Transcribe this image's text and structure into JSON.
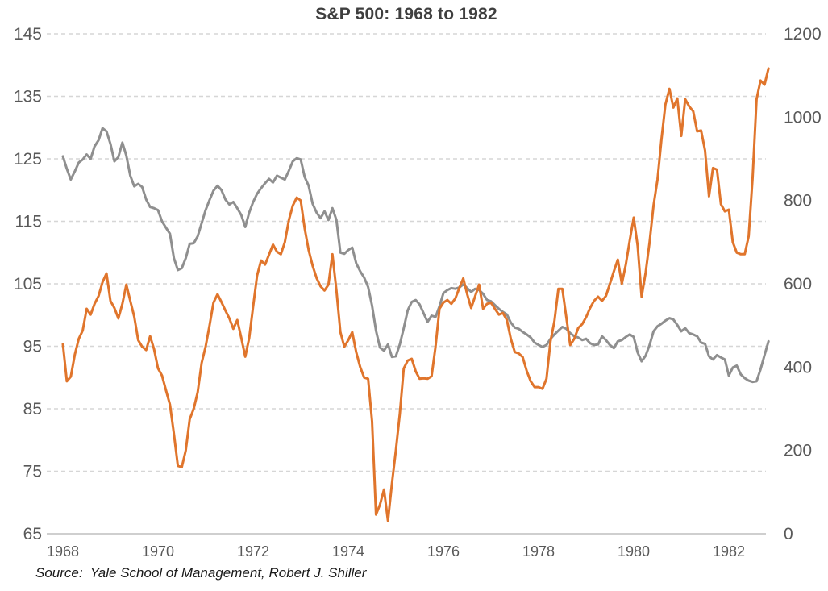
{
  "title": "S&P 500: 1968 to 1982",
  "source_note": "Source:  Yale School of Management, Robert J. Shiller",
  "colors": {
    "accent_orange": "#E0752C",
    "line_gray": "#8F8F8F",
    "gridline": "#D6D6D6",
    "axis_line": "#BFBFBF",
    "tick_label": "#595959",
    "title_text": "#3F3F3F",
    "source_text": "#1A1A1A",
    "background": "#FFFFFF"
  },
  "chart_data": {
    "type": "line",
    "title": "S&P 500: 1968 to 1982",
    "xlabel": "",
    "ylabel": "",
    "legend": "none",
    "grid": "horizontal dashed",
    "x_start": 1968,
    "x_step_years": 0.08333,
    "x_axis": {
      "ticks": [
        1968,
        1970,
        1972,
        1974,
        1976,
        1978,
        1980,
        1982
      ]
    },
    "left_axis": {
      "range": [
        65,
        145
      ],
      "ticks": [
        145,
        135,
        125,
        115,
        105,
        95,
        85,
        75,
        65
      ]
    },
    "right_axis": {
      "range": [
        0,
        1200
      ],
      "ticks": [
        1200,
        1000,
        800,
        600,
        400,
        200,
        0
      ]
    },
    "series": [
      {
        "name": "gray-line",
        "axis": "left",
        "color": "#8F8F8F",
        "values": [
          125.4,
          123.4,
          121.7,
          123.0,
          124.4,
          124.9,
          125.7,
          125.0,
          127.0,
          128.0,
          129.9,
          129.4,
          127.4,
          124.6,
          125.3,
          127.6,
          125.5,
          122.3,
          120.6,
          121.0,
          120.5,
          118.5,
          117.3,
          117.1,
          116.8,
          115.0,
          114.0,
          113.0,
          109.1,
          107.2,
          107.5,
          109.1,
          111.4,
          111.5,
          112.6,
          114.7,
          116.8,
          118.4,
          119.9,
          120.7,
          120.0,
          118.5,
          117.7,
          118.1,
          117.1,
          116.0,
          114.1,
          116.4,
          118.1,
          119.4,
          120.3,
          121.1,
          121.8,
          121.2,
          122.3,
          122.0,
          121.7,
          123.1,
          124.6,
          125.1,
          124.9,
          122.1,
          120.7,
          117.8,
          116.4,
          115.5,
          116.6,
          115.2,
          117.1,
          115.2,
          110.0,
          109.8,
          110.4,
          110.8,
          108.3,
          107.0,
          106.0,
          104.5,
          101.5,
          97.5,
          94.8,
          94.3,
          95.3,
          93.3,
          93.4,
          95.3,
          97.9,
          100.8,
          102.1,
          102.4,
          101.7,
          100.3,
          98.9,
          99.9,
          99.7,
          101.4,
          103.5,
          104.0,
          104.3,
          104.2,
          104.4,
          104.9,
          104.3,
          103.7,
          104.2,
          104.0,
          103.4,
          102.4,
          102.2,
          101.6,
          101.0,
          100.5,
          100.1,
          98.8,
          98.0,
          97.8,
          97.3,
          96.9,
          96.4,
          95.6,
          95.2,
          94.9,
          95.2,
          96.2,
          96.9,
          97.5,
          98.1,
          97.8,
          97.1,
          96.6,
          96.4,
          96.0,
          96.2,
          95.5,
          95.2,
          95.3,
          96.6,
          96.0,
          95.2,
          94.7,
          95.8,
          96.0,
          96.5,
          96.9,
          96.5,
          94.0,
          92.6,
          93.5,
          95.2,
          97.4,
          98.2,
          98.6,
          99.1,
          99.5,
          99.3,
          98.4,
          97.4,
          97.9,
          97.1,
          96.9,
          96.6,
          95.6,
          95.4,
          93.4,
          92.9,
          93.6,
          93.2,
          92.9,
          90.3,
          91.6,
          91.9,
          90.5,
          89.9,
          89.5,
          89.3,
          89.4,
          91.3,
          93.6,
          95.8
        ]
      },
      {
        "name": "orange-line",
        "axis": "right",
        "color": "#E0752C",
        "values": [
          455,
          366,
          377,
          430,
          468,
          488,
          540,
          526,
          552,
          571,
          604,
          625,
          559,
          542,
          517,
          552,
          598,
          559,
          521,
          465,
          449,
          441,
          474,
          443,
          397,
          380,
          345,
          310,
          240,
          163,
          160,
          200,
          275,
          300,
          340,
          410,
          449,
          500,
          555,
          575,
          556,
          536,
          517,
          492,
          513,
          470,
          425,
          470,
          546,
          620,
          656,
          646,
          670,
          694,
          677,
          671,
          700,
          753,
          788,
          807,
          800,
          733,
          681,
          643,
          614,
          594,
          584,
          598,
          671,
          584,
          484,
          449,
          465,
          484,
          436,
          400,
          375,
          372,
          270,
          46,
          70,
          106,
          31,
          120,
          200,
          288,
          397,
          416,
          420,
          390,
          372,
          373,
          372,
          378,
          449,
          540,
          555,
          561,
          552,
          565,
          590,
          613,
          575,
          542,
          570,
          598,
          540,
          552,
          555,
          540,
          526,
          530,
          513,
          468,
          436,
          433,
          424,
          391,
          366,
          352,
          352,
          348,
          372,
          462,
          511,
          588,
          588,
          520,
          453,
          468,
          494,
          503,
          520,
          542,
          559,
          569,
          559,
          571,
          600,
          630,
          658,
          600,
          646,
          704,
          759,
          691,
          569,
          627,
          700,
          788,
          850,
          946,
          1030,
          1068,
          1023,
          1045,
          955,
          1043,
          1026,
          1014,
          966,
          968,
          920,
          810,
          878,
          874,
          791,
          774,
          778,
          700,
          675,
          671,
          671,
          714,
          855,
          1043,
          1088,
          1078,
          1117
        ]
      }
    ]
  }
}
